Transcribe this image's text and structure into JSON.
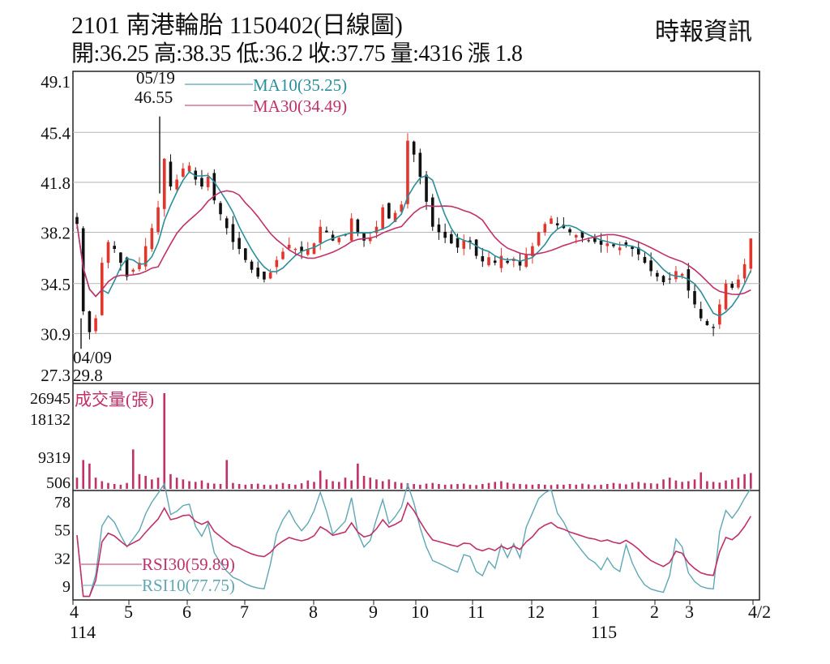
{
  "header": {
    "title": "2101  南港輪胎 1150402(日線圖)",
    "ohlc": "開:36.25 高:38.35 低:36.2 收:37.75 量:4316 漲 1.8",
    "source": "時報資訊"
  },
  "colors": {
    "up": "#e2352c",
    "down": "#111111",
    "ma10": "#2a8f9c",
    "ma30": "#c2306a",
    "rsi30": "#c2306a",
    "rsi10": "#5fa7b5",
    "volume": "#c2306a",
    "grid": "#b5b5b5"
  },
  "chart_data": {
    "type": "candlestick",
    "title": "2101 南港輪胎 1150402(日線圖)",
    "price_panel": {
      "yticks": [
        "49.1",
        "45.4",
        "41.8",
        "38.2",
        "34.5",
        "30.9",
        "27.3"
      ],
      "ylim": [
        27.3,
        49.1
      ],
      "legend": [
        {
          "name": "MA10",
          "label": "MA10(35.25)"
        },
        {
          "name": "MA30",
          "label": "MA30(34.49)"
        }
      ],
      "annotations": [
        {
          "date": "05/19",
          "value": "46.55",
          "kind": "high"
        },
        {
          "date": "04/09",
          "value": "29.8",
          "kind": "low"
        }
      ],
      "closes": [
        38.8,
        32.5,
        31,
        32,
        36,
        37.5,
        37,
        36,
        35,
        35.5,
        36,
        37.2,
        38.5,
        40,
        43.5,
        41.5,
        42,
        42.8,
        43,
        42,
        41.5,
        42.2,
        40.5,
        39.5,
        38.5,
        37.5,
        37,
        36.2,
        35.5,
        35,
        34.8,
        35.3,
        36.2,
        36.8,
        37.3,
        37,
        36.8,
        37,
        37.4,
        38.6,
        38.2,
        37.6,
        37.8,
        38,
        39.2,
        38.2,
        37.6,
        37.8,
        38.6,
        40,
        39.2,
        39.6,
        40.2,
        44.8,
        43.8,
        42.2,
        40.4,
        38.6,
        38.2,
        37.8,
        37.4,
        37.1,
        37.6,
        37.5,
        36.5,
        36.1,
        36.4,
        36,
        36.5,
        36,
        36.3,
        35.8,
        36.6,
        37.2,
        38.2,
        38.8,
        39.2,
        38.7,
        38.5,
        38.2,
        38,
        37.8,
        37.6,
        37.5,
        37.3,
        37.4,
        37.2,
        37.1,
        37.3,
        37,
        36.6,
        36,
        35.4,
        35,
        34.6,
        34.8,
        35.4,
        35.2,
        34,
        33,
        32,
        31.5,
        31.3,
        33,
        34.5,
        34.2,
        34.8,
        35.9,
        37.75
      ]
    },
    "volume_panel": {
      "label": "成交量(張)",
      "yticks": [
        "26945",
        "18132",
        "9319",
        "506"
      ],
      "ylim": [
        506,
        26945
      ],
      "values": [
        3000,
        8000,
        7000,
        3000,
        2000,
        1500,
        1200,
        1000,
        1500,
        11000,
        4000,
        3500,
        2500,
        3000,
        26945,
        4000,
        3000,
        2500,
        2000,
        1800,
        2200,
        1500,
        1300,
        1200,
        8000,
        1500,
        1200,
        1000,
        1200,
        1300,
        1000,
        900,
        1100,
        1500,
        1200,
        1000,
        1400,
        2200,
        1800,
        5000,
        2500,
        2000,
        1800,
        3000,
        2200,
        7000,
        3500,
        3000,
        2500,
        2000,
        2500,
        1800,
        1500,
        1400,
        1200,
        1000,
        1300,
        1500,
        1200,
        1000,
        1100,
        1200,
        1300,
        1000,
        900,
        1200,
        1500,
        1800,
        2000,
        1600,
        1300,
        1200,
        1100,
        1000,
        1200,
        1000,
        900,
        1100,
        1000,
        1200,
        1000,
        1300,
        1100,
        900,
        1000,
        1200,
        1500,
        1300,
        1100,
        1600,
        1800,
        1500,
        1400,
        1300,
        2500,
        3000,
        2200,
        1800,
        2000,
        2500,
        4500,
        2000,
        1800,
        1600,
        2200,
        2500,
        3000,
        4000,
        4316
      ]
    },
    "rsi_panel": {
      "yticks": [
        "78",
        "55",
        "32",
        "9"
      ],
      "ylim": [
        9,
        78
      ],
      "legend": [
        {
          "name": "RSI30",
          "label": "RSI30(59.89)"
        },
        {
          "name": "RSI10",
          "label": "RSI10(77.75)"
        }
      ]
    },
    "xticks": [
      "4",
      "5",
      "6",
      "7",
      "8",
      "9",
      "10",
      "11",
      "12",
      "1",
      "2",
      "3",
      "4/2"
    ],
    "year_labels": [
      "114",
      "115"
    ]
  }
}
